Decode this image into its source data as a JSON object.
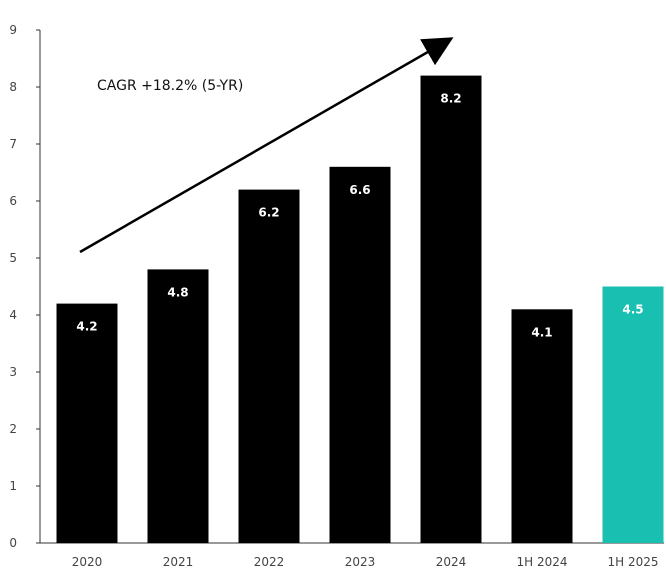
{
  "chart_data": {
    "type": "bar",
    "categories": [
      "2020",
      "2021",
      "2022",
      "2023",
      "2024",
      "1H 2024",
      "1H 2025"
    ],
    "values": [
      4.2,
      4.8,
      6.2,
      6.6,
      8.2,
      4.1,
      4.5
    ],
    "value_labels": [
      "4.2",
      "4.8",
      "6.2",
      "6.6",
      "8.2",
      "4.1",
      "4.5"
    ],
    "ylim": [
      0,
      9
    ],
    "yticks": [
      0,
      1,
      2,
      3,
      4,
      5,
      6,
      7,
      8,
      9
    ],
    "grid": false,
    "annotation": "CAGR +18.2% (5-YR)",
    "colors": {
      "default_bar": "#000000",
      "highlight_bar": "#19BFB1",
      "axis": "#333333",
      "label_text": "#ffffff"
    },
    "highlight_category": "1H 2025",
    "title": "",
    "xlabel": "",
    "ylabel": ""
  }
}
